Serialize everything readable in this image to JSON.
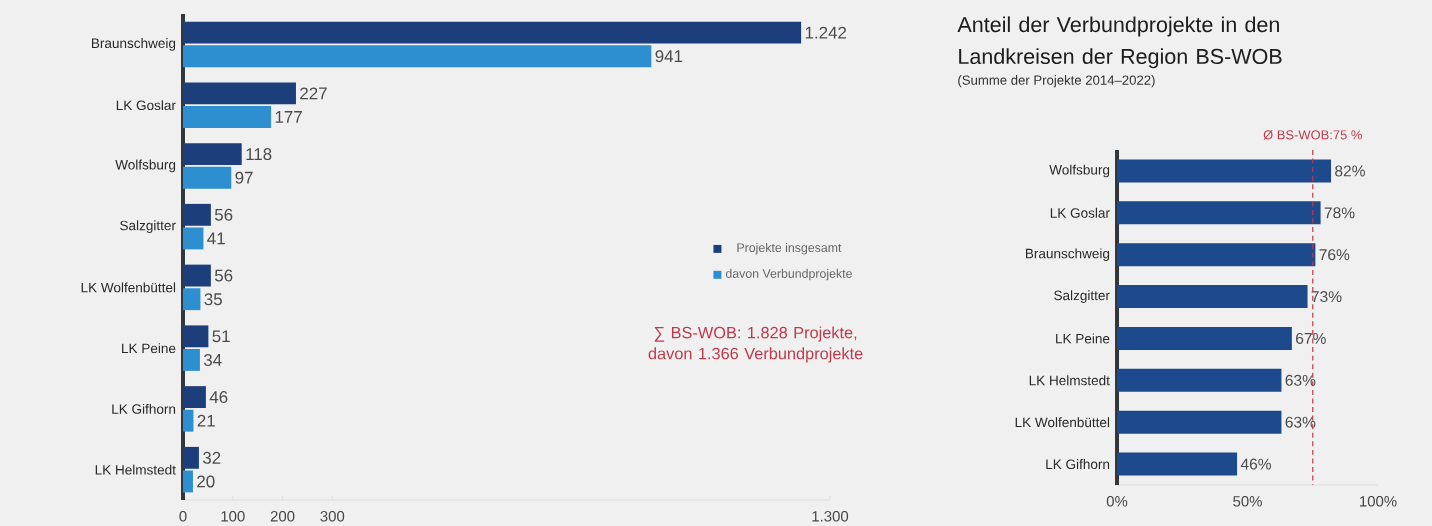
{
  "chart_data": [
    {
      "type": "bar",
      "orientation": "horizontal",
      "categories": [
        "Braunschweig",
        "LK Goslar",
        "Wolfsburg",
        "Salzgitter",
        "LK Wolfenbüttel",
        "LK Peine",
        "LK Gifhorn",
        "LK Helmstedt"
      ],
      "series": [
        {
          "name": "Projekte insgesamt",
          "color": "#1c3f7c",
          "values": [
            1242,
            227,
            118,
            56,
            56,
            51,
            46,
            32
          ],
          "value_labels": [
            "1.242",
            "227",
            "118",
            "56",
            "56",
            "51",
            "46",
            "32"
          ]
        },
        {
          "name": "davon Verbundprojekte",
          "color": "#2d8fd0",
          "values": [
            941,
            177,
            97,
            41,
            35,
            34,
            21,
            20
          ],
          "value_labels": [
            "941",
            "177",
            "97",
            "41",
            "35",
            "34",
            "21",
            "20"
          ]
        }
      ],
      "xlim": [
        0,
        1300
      ],
      "xticks": [
        0,
        100,
        200,
        300,
        {
          "value": 1300,
          "label": "1.300"
        }
      ],
      "legend": "right",
      "annotations": [
        "∑ BS-WOB: 1.828 Projekte, davon 1.366 Verbundprojekte"
      ]
    },
    {
      "type": "bar",
      "orientation": "horizontal",
      "title": "Anteil der Verbundprojekte in den Landkreisen der Region BS-WOB",
      "subtitle": "(Summe der Projekte 2014–2022)",
      "categories": [
        "Wolfsburg",
        "LK Goslar",
        "Braunschweig",
        "Salzgitter",
        "LK Peine",
        "LK Helmstedt",
        "LK Wolfenbüttel",
        "LK Gifhorn"
      ],
      "series": [
        {
          "color": "#1c4a8c",
          "values": [
            82,
            78,
            76,
            73,
            67,
            63,
            63,
            46
          ],
          "value_labels": [
            "82%",
            "78%",
            "76%",
            "73%",
            "67%",
            "63%",
            "63%",
            "46%"
          ]
        }
      ],
      "xlim": [
        0,
        100
      ],
      "xticks": [
        {
          "value": 0,
          "label": "0%"
        },
        {
          "value": 50,
          "label": "50%"
        },
        {
          "value": 100,
          "label": "100%"
        }
      ],
      "ref_lines": [
        {
          "axis": "x",
          "value": 75,
          "label": "Ø BS-WOB:75 %",
          "color": "#c0394b",
          "line_style": "dashed"
        }
      ]
    }
  ]
}
